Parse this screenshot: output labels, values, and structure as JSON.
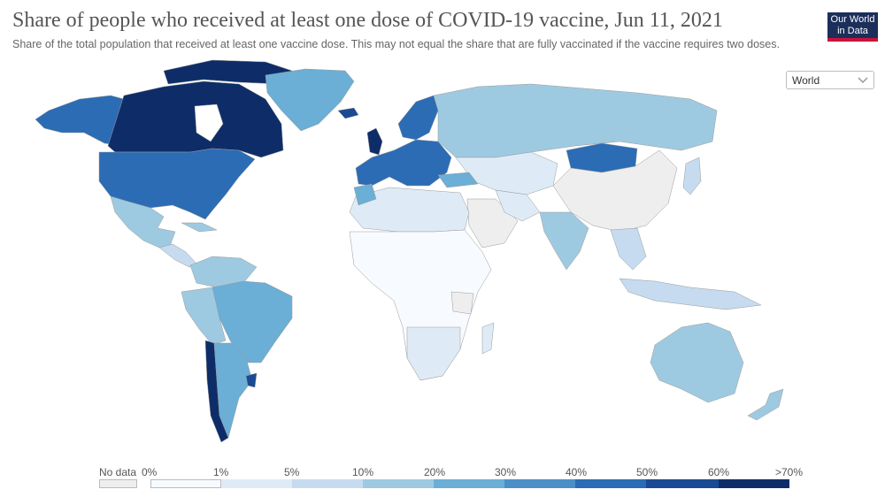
{
  "title": "Share of people who received at least one dose of COVID-19 vaccine, Jun 11, 2021",
  "subtitle": "Share of the total population that received at least one vaccine dose. This may not equal the share that are fully vaccinated if the vaccine requires two doses.",
  "logo": {
    "line1": "Our World",
    "line2": "in Data",
    "bg": "#1b2f5a",
    "accent": "#c8143c"
  },
  "region_select": {
    "value": "World",
    "icon": "chevron-down-icon"
  },
  "legend": {
    "no_data": {
      "label": "No data",
      "color": "#eeeeee"
    },
    "ticks": [
      "0%",
      "1%",
      "5%",
      "10%",
      "20%",
      "30%",
      "40%",
      "50%",
      "60%",
      ">70%"
    ],
    "colors": [
      "#f7fbff",
      "#deebf7",
      "#c6dbef",
      "#9ecae1",
      "#6baed6",
      "#4a8fc8",
      "#2b6cb5",
      "#1a4a93",
      "#0e2d68"
    ]
  }
}
